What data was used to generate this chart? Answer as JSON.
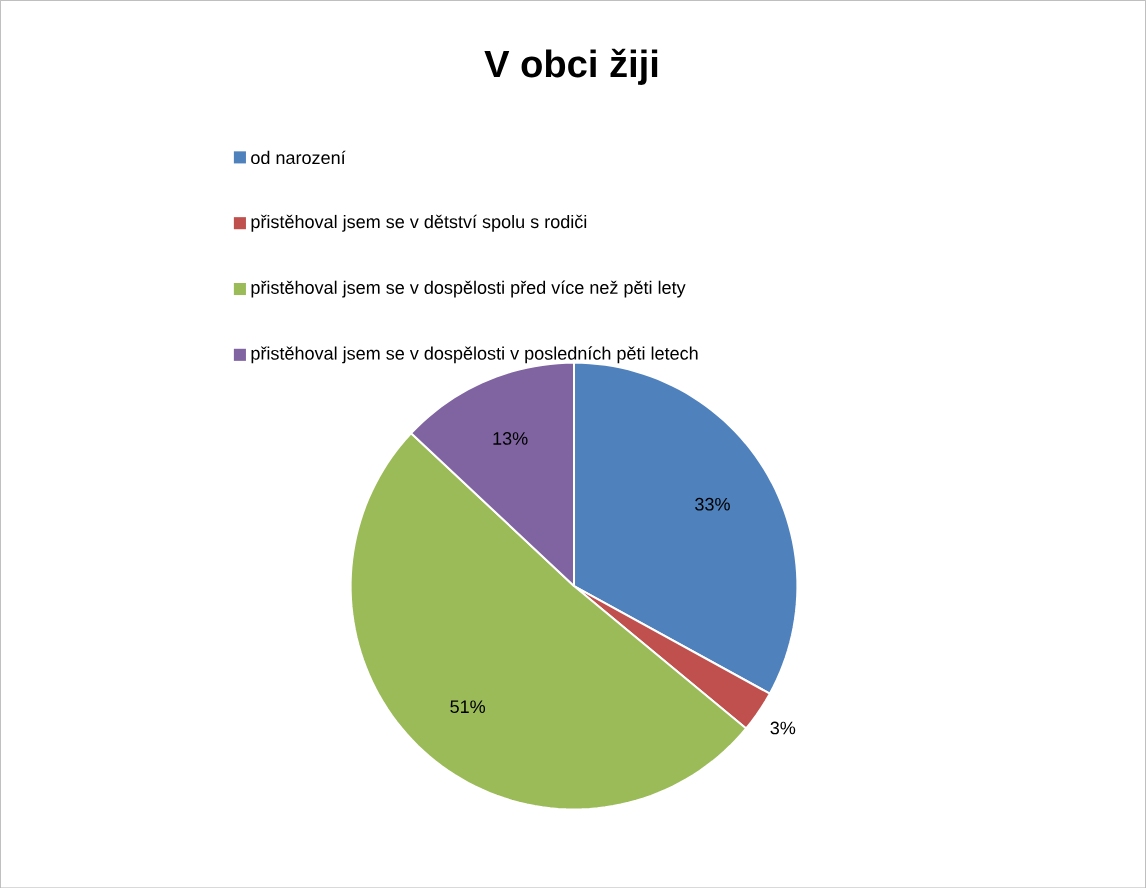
{
  "chart_data": {
    "type": "pie",
    "title": "V obci žiji",
    "categories": [
      "od narození",
      "přistěhoval jsem se v dětství spolu s rodiči",
      "přistěhoval jsem se v dospělosti před více než pěti lety",
      "přistěhoval jsem se v dospělosti v posledních pěti letech"
    ],
    "values": [
      33,
      3,
      51,
      13
    ],
    "colors": [
      "#4f81bd",
      "#c0504d",
      "#9bbb59",
      "#8064a2"
    ],
    "value_labels": [
      "33%",
      "3%",
      "51%",
      "13%"
    ],
    "legend": "top"
  }
}
